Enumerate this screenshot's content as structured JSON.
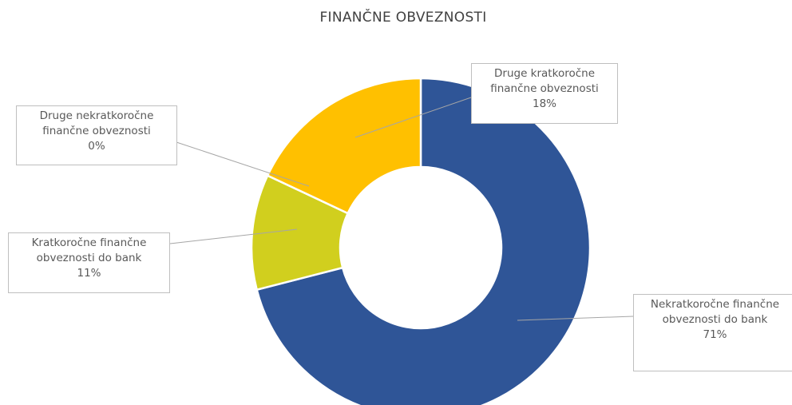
{
  "chart_data": {
    "type": "donut",
    "title": "FINANČNE OBVEZNOSTI",
    "categories": [
      "Nekratkoročne finančne obveznosti do bank",
      "Kratkoročne finančne obveznosti do bank",
      "Druge nekratkoročne finančne obveznosti",
      "Druge kratkoročne finančne obveznosti"
    ],
    "values": [
      71,
      11,
      0,
      18
    ],
    "value_labels": [
      "71%",
      "11%",
      "0%",
      "18%"
    ],
    "colors": [
      "#2f5597",
      "#d1cf1e",
      "#a5a5a5",
      "#ffc000"
    ]
  }
}
